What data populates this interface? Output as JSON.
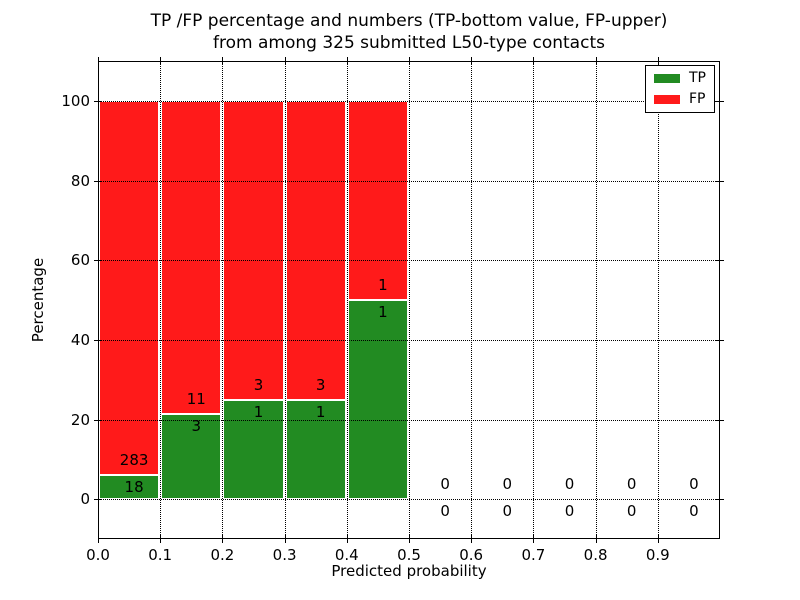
{
  "chart_data": {
    "type": "bar",
    "stacked": true,
    "title_line1": "TP /FP percentage and numbers (TP-bottom value, FP-upper)",
    "title_line2": "from among 325 submitted L50-type contacts",
    "xlabel": "Predicted probability",
    "ylabel": "Percentage",
    "xlim": [
      0.0,
      1.0
    ],
    "ylim": [
      -10,
      110
    ],
    "x_ticks": [
      "0.0",
      "0.1",
      "0.2",
      "0.3",
      "0.4",
      "0.5",
      "0.6",
      "0.7",
      "0.8",
      "0.9"
    ],
    "y_ticks": [
      0,
      20,
      40,
      60,
      80,
      100
    ],
    "grid": {
      "visible": true,
      "style": "dotted",
      "color": "#000000",
      "above_bars": true
    },
    "bin_width": 0.1,
    "total_contacts": 325,
    "bins": [
      {
        "x_start": 0.0,
        "tp_count": 18,
        "fp_count": 283,
        "tp_pct": 5.98,
        "fp_pct": 94.02
      },
      {
        "x_start": 0.1,
        "tp_count": 3,
        "fp_count": 11,
        "tp_pct": 21.43,
        "fp_pct": 78.57
      },
      {
        "x_start": 0.2,
        "tp_count": 1,
        "fp_count": 3,
        "tp_pct": 25.0,
        "fp_pct": 75.0
      },
      {
        "x_start": 0.3,
        "tp_count": 1,
        "fp_count": 3,
        "tp_pct": 25.0,
        "fp_pct": 75.0
      },
      {
        "x_start": 0.4,
        "tp_count": 1,
        "fp_count": 1,
        "tp_pct": 50.0,
        "fp_pct": 50.0
      },
      {
        "x_start": 0.5,
        "tp_count": 0,
        "fp_count": 0,
        "tp_pct": 0,
        "fp_pct": 0
      },
      {
        "x_start": 0.6,
        "tp_count": 0,
        "fp_count": 0,
        "tp_pct": 0,
        "fp_pct": 0
      },
      {
        "x_start": 0.7,
        "tp_count": 0,
        "fp_count": 0,
        "tp_pct": 0,
        "fp_pct": 0
      },
      {
        "x_start": 0.8,
        "tp_count": 0,
        "fp_count": 0,
        "tp_pct": 0,
        "fp_pct": 0
      },
      {
        "x_start": 0.9,
        "tp_count": 0,
        "fp_count": 0,
        "tp_pct": 0,
        "fp_pct": 0
      }
    ],
    "legend": [
      {
        "label": "TP",
        "color": "#228b22"
      },
      {
        "label": "FP",
        "color": "#ff1a1a"
      }
    ],
    "legend_position": "upper right",
    "colors": {
      "tp": "#228b22",
      "fp": "#ff1a1a",
      "background": "#ffffff",
      "text": "#000000"
    }
  }
}
